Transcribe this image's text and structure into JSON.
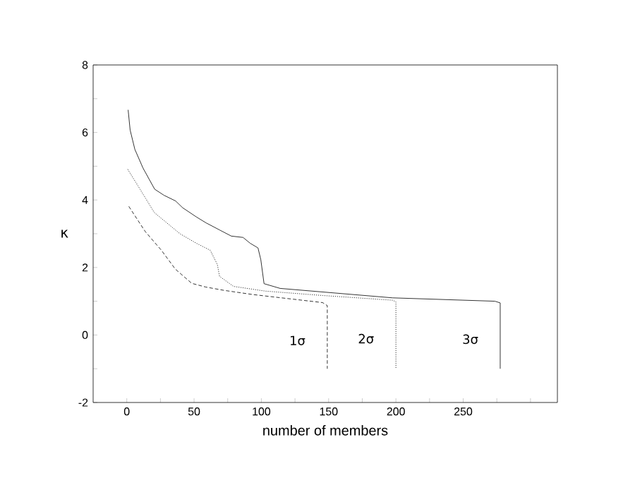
{
  "chart_data": {
    "type": "line",
    "xlabel": "number of members",
    "ylabel": "κ",
    "xlim": [
      -25,
      320
    ],
    "ylim": [
      -2,
      8
    ],
    "xticks": [
      0,
      {
        "value": 25,
        "label": null
      },
      50,
      {
        "value": 75,
        "label": null
      },
      100,
      {
        "value": 125,
        "label": null
      },
      150,
      {
        "value": 175,
        "label": null
      },
      200,
      {
        "value": 225,
        "label": null
      },
      250,
      {
        "value": 275,
        "label": null
      },
      {
        "value": 300,
        "label": null
      }
    ],
    "yticks": [
      -2,
      {
        "value": -1,
        "label": null
      },
      0,
      {
        "value": 1,
        "label": null
      },
      2,
      {
        "value": 3,
        "label": null
      },
      4,
      {
        "value": 5,
        "label": null
      },
      6,
      {
        "value": 7,
        "label": null
      },
      8
    ],
    "grid": false,
    "marker": "none",
    "series": [
      {
        "color": "#000000",
        "line_style": "solid",
        "x": [
          1,
          2.5,
          6,
          12,
          20.7,
          27.6,
          36.3,
          41.5,
          52,
          59,
          69,
          77.7,
          86.4,
          91.6,
          97.5,
          99.6,
          102,
          114,
          197.6,
          273.6,
          277.5,
          277.5
        ],
        "values": [
          6.67,
          6.07,
          5.5,
          4.95,
          4.32,
          4.14,
          3.97,
          3.77,
          3.49,
          3.32,
          3.11,
          2.93,
          2.89,
          2.72,
          2.58,
          2.23,
          1.52,
          1.38,
          1.1,
          1.0,
          0.95,
          -1.0
        ]
      },
      {
        "color": "#000000",
        "line_style": "dashed",
        "x": [
          1.5,
          13.6,
          25.7,
          36.1,
          48.3,
          58.7,
          72.6,
          93.4,
          102,
          145.5,
          149,
          149
        ],
        "values": [
          3.81,
          3.07,
          2.51,
          1.95,
          1.53,
          1.42,
          1.32,
          1.2,
          1.16,
          0.96,
          0.87,
          -1.0
        ]
      },
      {
        "color": "#000000",
        "line_style": "dotted",
        "x": [
          0.7,
          8.3,
          20.4,
          39.5,
          51.6,
          62,
          67.3,
          68.9,
          79.3,
          103,
          145.5,
          197.6,
          200,
          200
        ],
        "values": [
          4.91,
          4.42,
          3.63,
          3.0,
          2.72,
          2.51,
          2.09,
          1.74,
          1.44,
          1.3,
          1.17,
          1.03,
          0.98,
          -1.0
        ]
      }
    ],
    "annotations": [
      "1σ",
      "2σ",
      "3σ"
    ]
  }
}
